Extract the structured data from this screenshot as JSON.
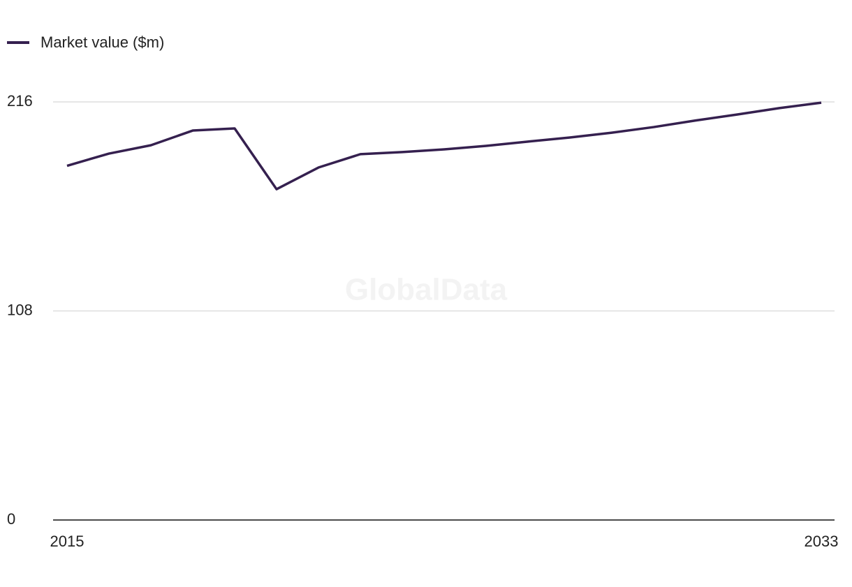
{
  "chart_data": {
    "type": "line",
    "watermark": "GlobalData",
    "x": [
      2015,
      2016,
      2017,
      2018,
      2019,
      2020,
      2021,
      2022,
      2023,
      2024,
      2025,
      2026,
      2027,
      2028,
      2029,
      2030,
      2031,
      2032,
      2033
    ],
    "series": [
      {
        "name": "Market value ($m)",
        "color": "#35204f",
        "values": [
          183,
          189.3,
          193.6,
          201.2,
          202.3,
          170.9,
          182.1,
          189,
          190.1,
          191.5,
          193.3,
          195.5,
          197.6,
          200.1,
          203,
          206.4,
          209.5,
          212.8,
          215.6
        ]
      }
    ],
    "xlim": [
      2015,
      2033
    ],
    "xticks": [
      2015,
      2033
    ],
    "ylim": [
      0,
      216
    ],
    "yticks": [
      0,
      108,
      216
    ],
    "grid": true
  }
}
